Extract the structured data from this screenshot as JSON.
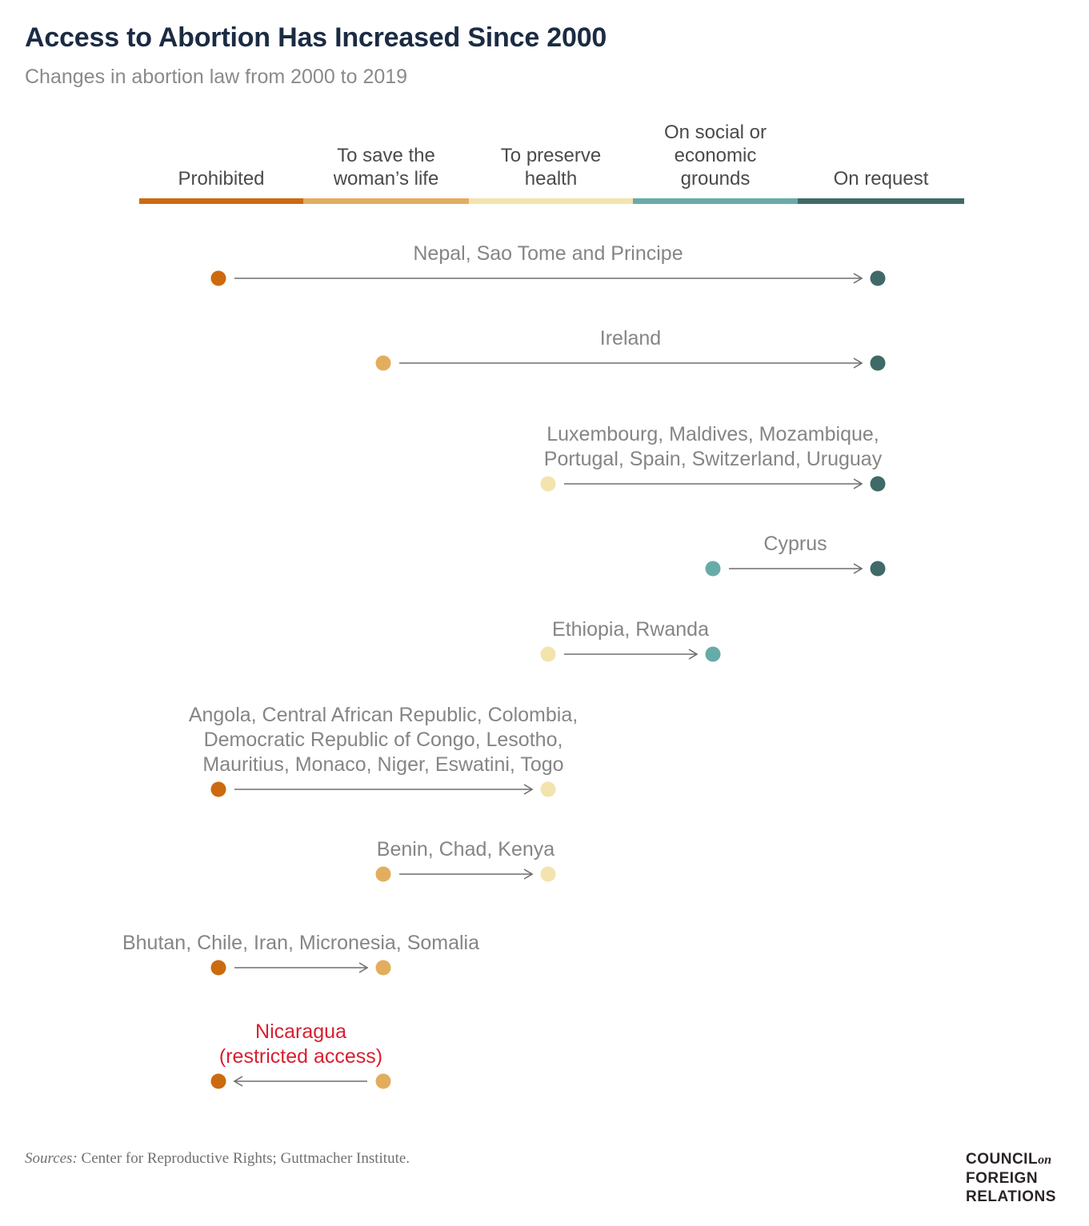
{
  "title": "Access to Abortion Has Increased Since 2000",
  "subtitle": "Changes in abortion law from 2000 to 2019",
  "sources_label": "Sources:",
  "sources_text": " Center for Reproductive Rights; Guttmacher Institute.",
  "logo": {
    "line1": "COUNCIL",
    "on": "on",
    "line2": "FOREIGN",
    "line3": "RELATIONS"
  },
  "chart_data": {
    "type": "dumbbell",
    "categories": [
      {
        "label": "Prohibited",
        "color": "#cc6a0f"
      },
      {
        "label": "To save the\nwoman’s life",
        "color": "#e3ad5e"
      },
      {
        "label": "To preserve\nhealth",
        "color": "#f3e3ad"
      },
      {
        "label": "On social or\neconomic\ngrounds",
        "color": "#67aba8"
      },
      {
        "label": "On request",
        "color": "#3f6a67"
      }
    ],
    "rows": [
      {
        "countries": [
          "Nepal, Sao Tome and Principe"
        ],
        "from": "Prohibited",
        "to": "On request"
      },
      {
        "countries": [
          "Ireland"
        ],
        "from": "To save the woman’s life",
        "to": "On request"
      },
      {
        "countries": [
          "Luxembourg, Maldives, Mozambique,",
          "Portugal, Spain, Switzerland, Uruguay"
        ],
        "from": "To preserve health",
        "to": "On request"
      },
      {
        "countries": [
          "Cyprus"
        ],
        "from": "On social or economic grounds",
        "to": "On request"
      },
      {
        "countries": [
          "Ethiopia, Rwanda"
        ],
        "from": "To preserve health",
        "to": "On social or economic grounds"
      },
      {
        "countries": [
          "Angola, Central African Republic, Colombia,",
          "Democratic Republic of Congo, Lesotho,",
          "Mauritius, Monaco, Niger, Eswatini, Togo"
        ],
        "from": "Prohibited",
        "to": "To preserve health"
      },
      {
        "countries": [
          "Benin, Chad, Kenya"
        ],
        "from": "To save the woman’s life",
        "to": "To preserve health"
      },
      {
        "countries": [
          "Bhutan, Chile, Iran, Micronesia, Somalia"
        ],
        "from": "Prohibited",
        "to": "To save the woman’s life"
      },
      {
        "countries": [
          "Nicaragua",
          "(restricted access)"
        ],
        "from": "To save the woman’s life",
        "to": "Prohibited",
        "restricted": true
      }
    ]
  }
}
